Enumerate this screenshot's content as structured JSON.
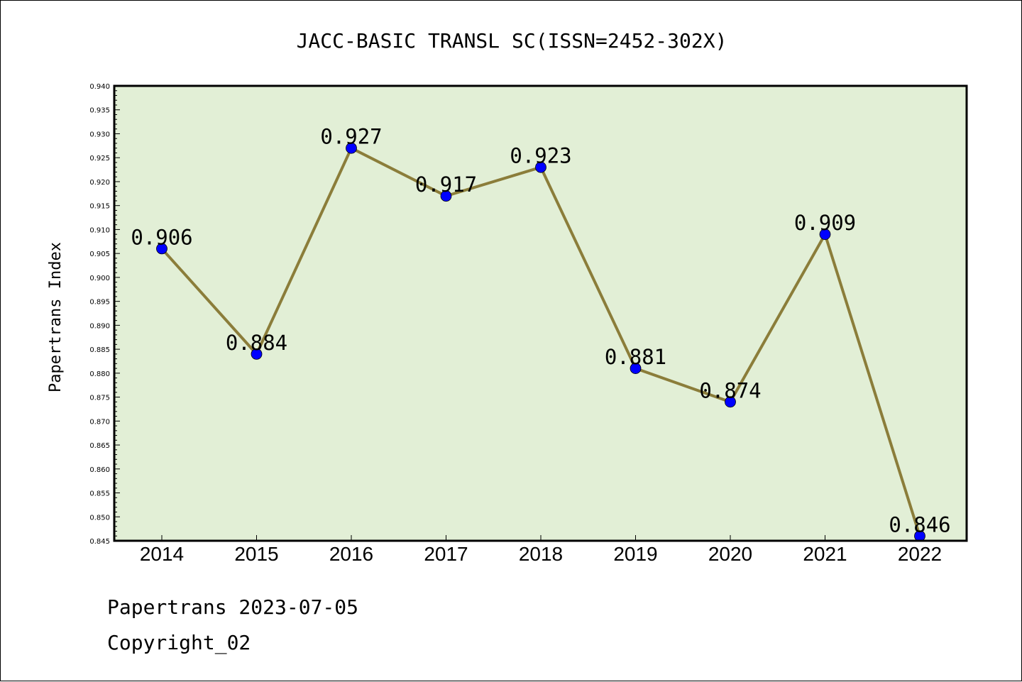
{
  "chart_data": {
    "type": "line",
    "title": "JACC-BASIC TRANSL SC(ISSN=2452-302X)",
    "xlabel": "",
    "ylabel": "Papertrans Index",
    "categories": [
      "2014",
      "2015",
      "2016",
      "2017",
      "2018",
      "2019",
      "2020",
      "2021",
      "2022"
    ],
    "values": [
      0.906,
      0.884,
      0.927,
      0.917,
      0.923,
      0.881,
      0.874,
      0.909,
      0.846
    ],
    "data_labels": [
      "0.906",
      "0.884",
      "0.927",
      "0.917",
      "0.923",
      "0.881",
      "0.874",
      "0.909",
      "0.846"
    ],
    "ylim": [
      0.845,
      0.94
    ],
    "ytick_labels": [
      "0.845",
      "0.850",
      "0.855",
      "0.860",
      "0.865",
      "0.870",
      "0.875",
      "0.880",
      "0.885",
      "0.890",
      "0.895",
      "0.900",
      "0.905",
      "0.910",
      "0.915",
      "0.920",
      "0.925",
      "0.930",
      "0.935",
      "0.940"
    ],
    "grid": false,
    "colors": {
      "plot_background": "#e2efd6",
      "line": "#8b7d3a",
      "marker": "#0000ff"
    }
  },
  "footer": {
    "line1": "Papertrans 2023-07-05",
    "line2": "Copyright_02"
  }
}
